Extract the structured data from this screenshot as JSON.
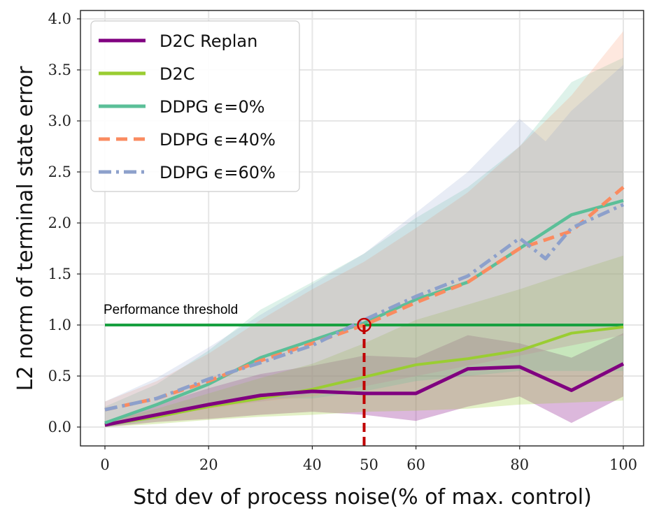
{
  "chart_data": {
    "type": "line",
    "xlabel": "Std dev of process noise(% of max. control)",
    "ylabel": "L2 norm of terminal state error",
    "xlim": [
      -10,
      104
    ],
    "ylim": [
      -0.2,
      4.1
    ],
    "xticks": [
      0,
      20,
      40,
      50,
      60,
      80,
      100
    ],
    "xtick_labels": [
      "0",
      "20",
      "40",
      "50",
      "60",
      "80",
      "100"
    ],
    "yticks": [
      0.0,
      0.5,
      1.0,
      1.5,
      2.0,
      2.5,
      3.0,
      3.5,
      4.0
    ],
    "ytick_labels": [
      "0.0",
      "0.5",
      "1.0",
      "1.5",
      "2.0",
      "2.5",
      "3.0",
      "3.5",
      "4.0"
    ],
    "grid": true,
    "legend_position": "top-left",
    "series": [
      {
        "name": "D2C Replan",
        "color": "#800080",
        "style": "solid",
        "x": [
          0,
          10,
          20,
          30,
          40,
          50,
          60,
          70,
          80,
          90,
          100
        ],
        "values": [
          0.02,
          0.12,
          0.22,
          0.31,
          0.35,
          0.33,
          0.33,
          0.57,
          0.59,
          0.36,
          0.62
        ],
        "band_low": [
          0.0,
          0.05,
          0.08,
          0.12,
          0.15,
          0.12,
          0.06,
          0.2,
          0.3,
          0.04,
          0.3
        ],
        "band_high": [
          0.05,
          0.22,
          0.38,
          0.52,
          0.6,
          0.7,
          0.68,
          0.9,
          0.82,
          0.68,
          0.92
        ]
      },
      {
        "name": "D2C",
        "color": "#9ACD32",
        "style": "solid",
        "x": [
          0,
          10,
          20,
          30,
          40,
          50,
          60,
          70,
          80,
          90,
          100
        ],
        "values": [
          0.02,
          0.1,
          0.2,
          0.28,
          0.37,
          0.49,
          0.61,
          0.67,
          0.75,
          0.92,
          0.98
        ],
        "band_low": [
          0.0,
          0.03,
          0.07,
          0.1,
          0.12,
          0.15,
          0.16,
          0.18,
          0.22,
          0.24,
          0.26
        ],
        "band_high": [
          0.05,
          0.18,
          0.33,
          0.48,
          0.62,
          0.82,
          1.05,
          1.2,
          1.35,
          1.52,
          1.68
        ]
      },
      {
        "name": "DDPG ϵ=0%",
        "color": "#5BBF98",
        "style": "solid",
        "x": [
          0,
          10,
          20,
          30,
          40,
          50,
          60,
          70,
          80,
          90,
          100
        ],
        "values": [
          0.04,
          0.22,
          0.42,
          0.68,
          0.85,
          1.02,
          1.25,
          1.42,
          1.75,
          2.08,
          2.22
        ],
        "band_low": [
          0.0,
          0.08,
          0.2,
          0.28,
          0.28,
          0.35,
          0.45,
          0.5,
          0.55,
          0.55,
          0.55
        ],
        "band_high": [
          0.2,
          0.42,
          0.75,
          1.15,
          1.42,
          1.7,
          2.05,
          2.35,
          2.75,
          3.38,
          3.62
        ]
      },
      {
        "name": "DDPG ϵ=40%",
        "color": "#FA8B60",
        "style": "dashed",
        "x": [
          0,
          10,
          20,
          30,
          40,
          50,
          60,
          70,
          80,
          90,
          100
        ],
        "values": [
          0.17,
          0.28,
          0.45,
          0.65,
          0.82,
          1.0,
          1.22,
          1.42,
          1.75,
          1.92,
          2.35
        ],
        "band_low": [
          0.0,
          0.1,
          0.18,
          0.25,
          0.3,
          0.4,
          0.5,
          0.6,
          0.7,
          0.8,
          0.9
        ],
        "band_high": [
          0.25,
          0.45,
          0.72,
          1.05,
          1.35,
          1.62,
          1.95,
          2.3,
          2.75,
          3.25,
          3.88
        ]
      },
      {
        "name": "DDPG ϵ=60%",
        "color": "#8DA0CB",
        "style": "dashdot",
        "x": [
          0,
          10,
          20,
          30,
          40,
          50,
          60,
          70,
          80,
          85,
          90,
          100
        ],
        "values": [
          0.17,
          0.28,
          0.47,
          0.63,
          0.8,
          1.05,
          1.28,
          1.48,
          1.85,
          1.65,
          1.95,
          2.18
        ],
        "band_low": [
          0.0,
          0.1,
          0.2,
          0.25,
          0.32,
          0.4,
          0.5,
          0.6,
          0.7,
          0.75,
          0.8,
          0.9
        ],
        "band_high": [
          0.25,
          0.48,
          0.78,
          1.1,
          1.4,
          1.7,
          2.1,
          2.5,
          3.02,
          2.8,
          3.1,
          3.55
        ]
      }
    ],
    "threshold": {
      "label": "Performance threshold",
      "value": 1.0,
      "x_start": 0,
      "x_end": 100,
      "color": "#18A040"
    },
    "marker": {
      "x": 50,
      "y": 1.0,
      "color": "#C00000"
    }
  }
}
